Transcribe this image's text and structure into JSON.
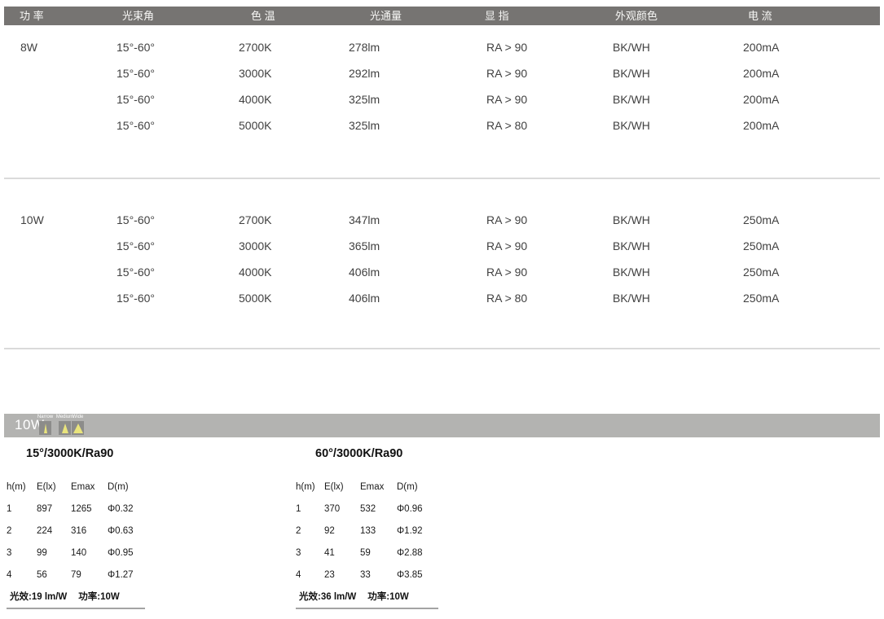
{
  "spec_table": {
    "headers": [
      "功 率",
      "光束角",
      "色 温",
      "光通量",
      "显 指",
      "外观颜色",
      "电 流"
    ],
    "groups": [
      {
        "power": "8W",
        "rows": [
          [
            "15°-60°",
            "2700K",
            "278lm",
            "RA > 90",
            "BK/WH",
            "200mA"
          ],
          [
            "15°-60°",
            "3000K",
            "292lm",
            "RA > 90",
            "BK/WH",
            "200mA"
          ],
          [
            "15°-60°",
            "4000K",
            "325lm",
            "RA > 90",
            "BK/WH",
            "200mA"
          ],
          [
            "15°-60°",
            "5000K",
            "325lm",
            "RA > 80",
            "BK/WH",
            "200mA"
          ]
        ]
      },
      {
        "power": "10W",
        "rows": [
          [
            "15°-60°",
            "2700K",
            "347lm",
            "RA > 90",
            "BK/WH",
            "250mA"
          ],
          [
            "15°-60°",
            "3000K",
            "365lm",
            "RA > 90",
            "BK/WH",
            "250mA"
          ],
          [
            "15°-60°",
            "4000K",
            "406lm",
            "RA > 90",
            "BK/WH",
            "250mA"
          ],
          [
            "15°-60°",
            "5000K",
            "406lm",
            "RA > 80",
            "BK/WH",
            "250mA"
          ]
        ]
      }
    ]
  },
  "photometric": {
    "bar_label": "10W",
    "beam_icons": [
      {
        "label": "Narrow"
      },
      {
        "label": "Medium"
      },
      {
        "label": "Wide"
      }
    ],
    "tables": [
      {
        "title": "15°/3000K/Ra90",
        "headers": [
          "h(m)",
          "E(lx)",
          "Emax",
          "D(m)"
        ],
        "rows": [
          [
            "1",
            "897",
            "1265",
            "Φ0.32"
          ],
          [
            "2",
            "224",
            "316",
            "Φ0.63"
          ],
          [
            "3",
            "99",
            "140",
            "Φ0.95"
          ],
          [
            "4",
            "56",
            "79",
            "Φ1.27"
          ]
        ],
        "footer": {
          "efficacy": "光效:19 lm/W",
          "power": "功率:10W"
        }
      },
      {
        "title": "60°/3000K/Ra90",
        "headers": [
          "h(m)",
          "E(lx)",
          "Emax",
          "D(m)"
        ],
        "rows": [
          [
            "1",
            "370",
            "532",
            "Φ0.96"
          ],
          [
            "2",
            "92",
            "133",
            "Φ1.92"
          ],
          [
            "3",
            "41",
            "59",
            "Φ2.88"
          ],
          [
            "4",
            "23",
            "33",
            "Φ3.85"
          ]
        ],
        "footer": {
          "efficacy": "光效:36 lm/W",
          "power": "功率:10W"
        }
      }
    ]
  },
  "colors": {
    "header_bar": "#767472",
    "power_bar": "#b3b3b1",
    "icon_square": "#8c8c8a",
    "beam_yellow": "#e9e47c",
    "divider": "#dadada",
    "footer_line": "#a3a3a3"
  }
}
